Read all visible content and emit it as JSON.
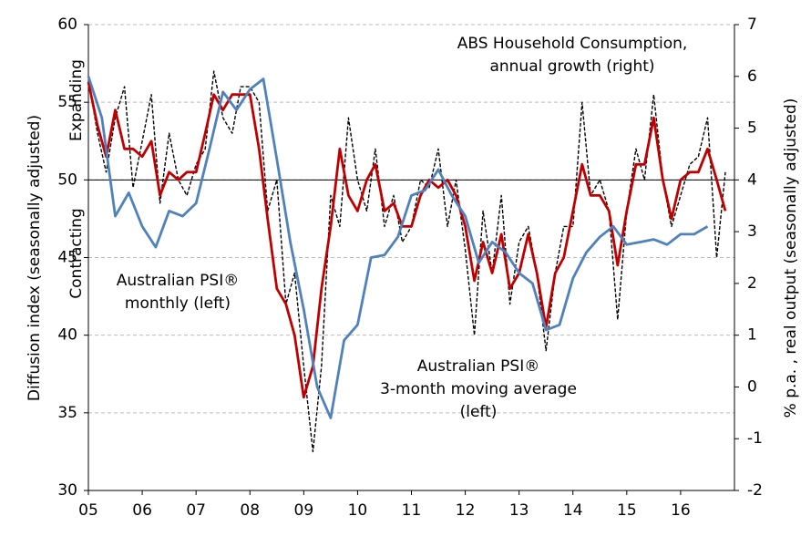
{
  "chart_data": {
    "type": "line",
    "ylabel": "Diffusion index (seasonally adjusted)",
    "y2label": "% p.a. , real output (seasonally adjusted)",
    "xlim": [
      2005,
      2017
    ],
    "xticks": [
      {
        "value": 2005,
        "label": "05"
      },
      {
        "value": 2006,
        "label": "06"
      },
      {
        "value": 2007,
        "label": "07"
      },
      {
        "value": 2008,
        "label": "08"
      },
      {
        "value": 2009,
        "label": "09"
      },
      {
        "value": 2010,
        "label": "10"
      },
      {
        "value": 2011,
        "label": "11"
      },
      {
        "value": 2012,
        "label": "12"
      },
      {
        "value": 2013,
        "label": "13"
      },
      {
        "value": 2014,
        "label": "14"
      },
      {
        "value": 2015,
        "label": "15"
      },
      {
        "value": 2016,
        "label": "16"
      }
    ],
    "ylim": [
      30,
      60
    ],
    "yticks": [
      30,
      35,
      40,
      45,
      50,
      55,
      60
    ],
    "y2lim": [
      -2,
      7
    ],
    "y2ticks": [
      -2,
      -1,
      0,
      1,
      2,
      3,
      4,
      5,
      6,
      7
    ],
    "y2tick_negative_color": "#c00000",
    "grid": true,
    "hline": 50,
    "annotations": [
      {
        "lines": [
          "Expanding"
        ],
        "color": "#000000"
      },
      {
        "lines": [
          "Contracting"
        ],
        "color": "#000000"
      },
      {
        "lines": [
          "ABS Household Consumption,",
          "annual growth (right)"
        ],
        "color": "#4f81bd"
      },
      {
        "lines": [
          "Australian PSI®",
          "monthly (left)"
        ],
        "color": "#000000"
      },
      {
        "lines": [
          "Australian PSI®",
          "3-month moving average",
          "(left)"
        ],
        "color": "#c00000"
      }
    ],
    "series": [
      {
        "color": "#000000",
        "dashed": true,
        "axis": "y",
        "x": [
          2005,
          2005.17,
          2005.33,
          2005.5,
          2005.67,
          2005.83,
          2006,
          2006.17,
          2006.33,
          2006.5,
          2006.67,
          2006.83,
          2007,
          2007.17,
          2007.33,
          2007.5,
          2007.67,
          2007.83,
          2008,
          2008.17,
          2008.33,
          2008.5,
          2008.67,
          2008.83,
          2009,
          2009.17,
          2009.33,
          2009.5,
          2009.67,
          2009.83,
          2010,
          2010.17,
          2010.33,
          2010.5,
          2010.67,
          2010.83,
          2011,
          2011.17,
          2011.33,
          2011.5,
          2011.67,
          2011.83,
          2012,
          2012.17,
          2012.33,
          2012.5,
          2012.67,
          2012.83,
          2013,
          2013.17,
          2013.33,
          2013.5,
          2013.67,
          2013.83,
          2014,
          2014.17,
          2014.33,
          2014.5,
          2014.67,
          2014.83,
          2015,
          2015.17,
          2015.33,
          2015.5,
          2015.67,
          2015.83,
          2016,
          2016.17,
          2016.33,
          2016.5,
          2016.67,
          2016.83
        ],
        "values": [
          56.5,
          53,
          50.5,
          54,
          56,
          49.5,
          52.5,
          55.5,
          48.5,
          53,
          50,
          49,
          51,
          52,
          57,
          54,
          53,
          56,
          56,
          55,
          48,
          50,
          42,
          44,
          38,
          32.5,
          38,
          49,
          47,
          54,
          50,
          48,
          52,
          47,
          49,
          46,
          47,
          50,
          49.5,
          52,
          47,
          50,
          45.5,
          40,
          48,
          44,
          49,
          42,
          46,
          47,
          44,
          39,
          44,
          47,
          47,
          55,
          49,
          50,
          48,
          41,
          48,
          52,
          50,
          55.5,
          50,
          47,
          49,
          51,
          51.5,
          54,
          45,
          50.5
        ]
      },
      {
        "color": "#c00000",
        "dashed": false,
        "axis": "y",
        "x": [
          2005,
          2005.17,
          2005.33,
          2005.5,
          2005.67,
          2005.83,
          2006,
          2006.17,
          2006.33,
          2006.5,
          2006.67,
          2006.83,
          2007,
          2007.17,
          2007.33,
          2007.5,
          2007.67,
          2007.83,
          2008,
          2008.17,
          2008.33,
          2008.5,
          2008.67,
          2008.83,
          2009,
          2009.17,
          2009.33,
          2009.5,
          2009.67,
          2009.83,
          2010,
          2010.17,
          2010.33,
          2010.5,
          2010.67,
          2010.83,
          2011,
          2011.17,
          2011.33,
          2011.5,
          2011.67,
          2011.83,
          2012,
          2012.17,
          2012.33,
          2012.5,
          2012.67,
          2012.83,
          2013,
          2013.17,
          2013.33,
          2013.5,
          2013.67,
          2013.83,
          2014,
          2014.17,
          2014.33,
          2014.5,
          2014.67,
          2014.83,
          2015,
          2015.17,
          2015.33,
          2015.5,
          2015.67,
          2015.83,
          2016,
          2016.17,
          2016.33,
          2016.5,
          2016.67,
          2016.83
        ],
        "values": [
          56.3,
          53.5,
          51.5,
          54.5,
          52,
          52,
          51.5,
          52.5,
          49,
          50.5,
          50,
          50.5,
          50.5,
          53,
          55.5,
          54.5,
          55.5,
          55.5,
          55.5,
          52,
          47.5,
          43,
          42,
          40,
          36,
          38,
          43,
          47,
          52,
          49,
          48,
          50,
          51,
          48,
          48.5,
          47,
          47,
          49,
          50,
          49.5,
          50,
          49,
          47,
          43.5,
          46,
          44,
          46.5,
          43,
          44,
          46.5,
          44,
          40.5,
          44,
          45,
          48,
          51,
          49,
          49,
          48,
          44.5,
          48,
          51,
          51,
          54,
          50,
          47.5,
          50,
          50.5,
          50.5,
          52,
          50,
          48
        ]
      },
      {
        "color": "#4f81bd",
        "dashed": false,
        "axis": "y2",
        "x": [
          2005,
          2005.25,
          2005.5,
          2005.75,
          2006,
          2006.25,
          2006.5,
          2006.75,
          2007,
          2007.25,
          2007.5,
          2007.75,
          2008,
          2008.25,
          2008.5,
          2008.75,
          2009,
          2009.25,
          2009.5,
          2009.75,
          2010,
          2010.25,
          2010.5,
          2010.75,
          2011,
          2011.25,
          2011.5,
          2011.75,
          2012,
          2012.25,
          2012.5,
          2012.75,
          2013,
          2013.25,
          2013.5,
          2013.75,
          2014,
          2014.25,
          2014.5,
          2014.75,
          2015,
          2015.25,
          2015.5,
          2015.75,
          2016,
          2016.25,
          2016.5
        ],
        "values": [
          6.0,
          5.2,
          3.3,
          3.75,
          3.1,
          2.7,
          3.4,
          3.3,
          3.55,
          4.6,
          5.7,
          5.35,
          5.75,
          5.95,
          4.4,
          2.8,
          1.5,
          0.0,
          -0.6,
          0.9,
          1.2,
          2.5,
          2.55,
          2.9,
          3.7,
          3.8,
          4.2,
          3.7,
          3.3,
          2.4,
          2.8,
          2.6,
          2.2,
          2.0,
          1.1,
          1.2,
          2.1,
          2.6,
          2.9,
          3.1,
          2.75,
          2.8,
          2.85,
          2.75,
          2.95,
          2.95,
          3.1
        ]
      }
    ]
  }
}
